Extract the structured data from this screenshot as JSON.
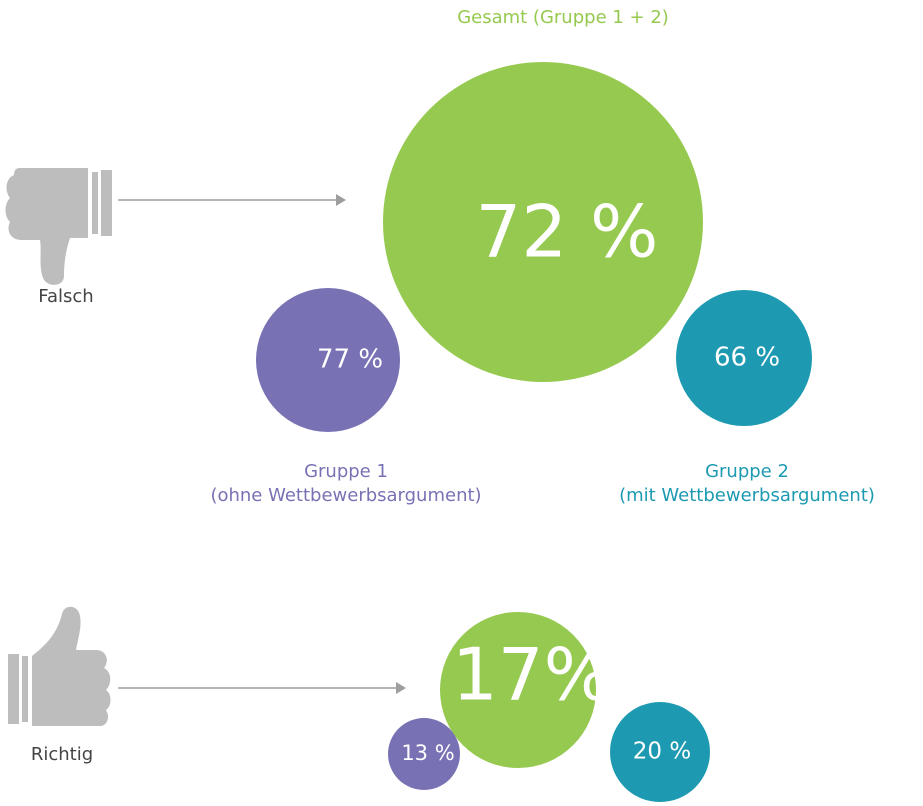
{
  "chart_data": [
    {
      "type": "bubble",
      "label": "Falsch",
      "categories": [
        "Gesamt (Gruppe 1 + 2)",
        "Gruppe 1",
        "Gruppe 2"
      ],
      "category_subtitles": [
        null,
        "(ohne Wettbewerbsargument)",
        "(mit Wettbewerbsargument)"
      ],
      "values": [
        72,
        77,
        66
      ],
      "value_labels": [
        "72 %",
        "77 %",
        "66 %"
      ],
      "colors": [
        "#96c94f",
        "#7872b4",
        "#1d9ab1"
      ]
    },
    {
      "type": "bubble",
      "label": "Richtig",
      "categories": [
        null,
        null,
        null
      ],
      "values": [
        17,
        13,
        20
      ],
      "value_labels": [
        "17%",
        "13 %",
        "20 %"
      ],
      "colors": [
        "#96c94f",
        "#7872b4",
        "#1d9ab1"
      ]
    }
  ]
}
